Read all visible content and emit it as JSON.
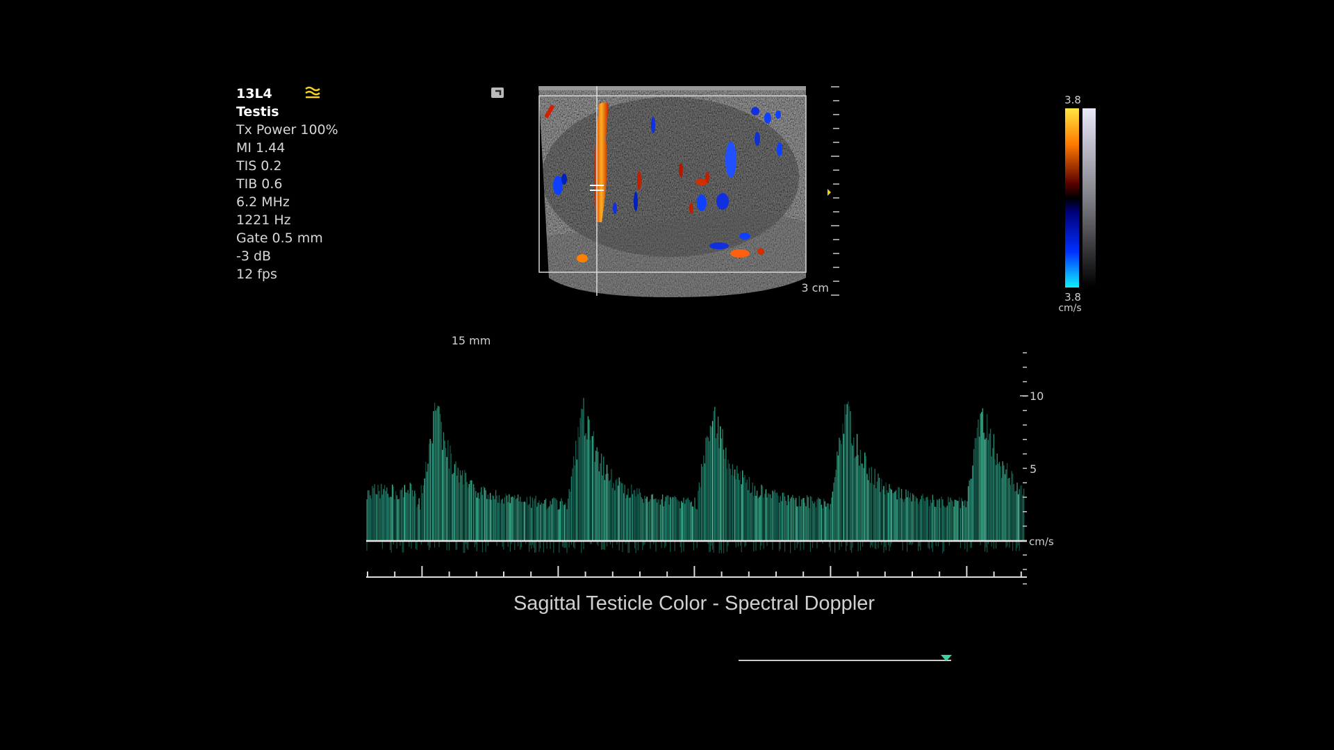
{
  "info_panel": {
    "probe": "13L4",
    "preset": "Testis",
    "lines": [
      "Tx Power 100%",
      "MI 1.44",
      "TIS 0.2",
      "TIB 0.6",
      "6.2 MHz",
      "1221 Hz",
      "Gate 0.5 mm",
      "-3 dB",
      "12 fps"
    ]
  },
  "image": {
    "depth_label": "3 cm"
  },
  "color_scale": {
    "top": "3.8",
    "bottom": "3.8",
    "unit": "cm/s"
  },
  "spectral": {
    "gate_depth": "15 mm",
    "axis_labels": [
      "10",
      "5"
    ],
    "unit": "cm/s"
  },
  "caption": "Sagittal Testicle Color - Spectral Doppler"
}
